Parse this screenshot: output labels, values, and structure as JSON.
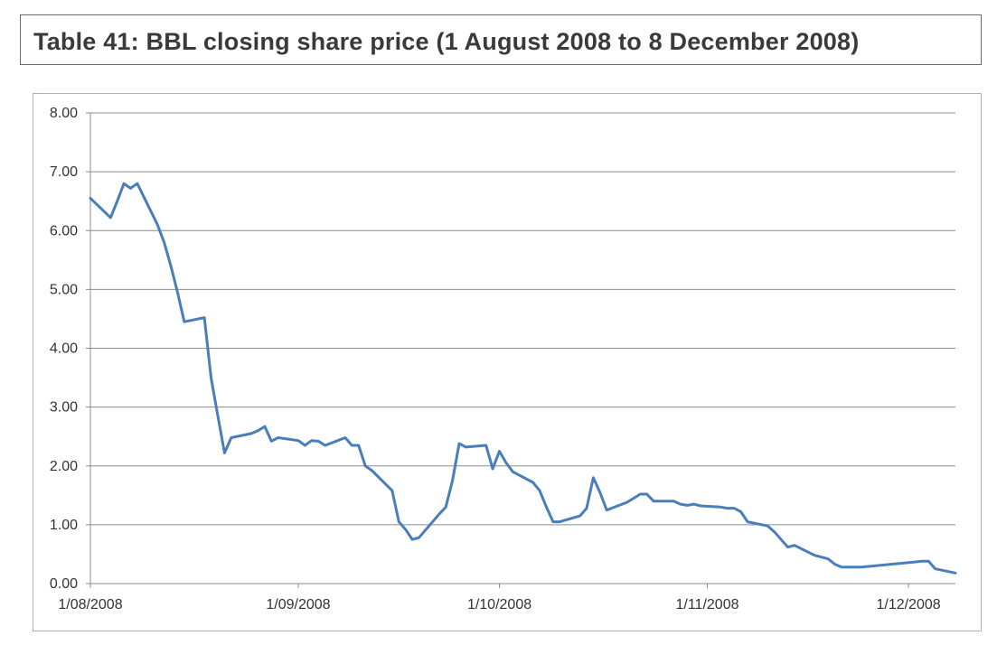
{
  "title": "Table 41: BBL closing share price (1 August 2008 to 8 December 2008)",
  "colors": {
    "line": "#4a7ebb",
    "grid": "#8c8c8c",
    "frame": "#a9b4c2",
    "title_border": "#6b6b6b",
    "title_text": "#3a3a3a"
  },
  "chart_data": {
    "type": "line",
    "title": "",
    "xlabel": "",
    "ylabel": "",
    "x_axis": "date",
    "xlim": [
      "2008-08-01",
      "2008-12-08"
    ],
    "ylim": [
      0,
      8
    ],
    "grid": true,
    "legend": "none",
    "y_ticks": [
      "0.00",
      "1.00",
      "2.00",
      "3.00",
      "4.00",
      "5.00",
      "6.00",
      "7.00",
      "8.00"
    ],
    "x_ticks": [
      {
        "date": "2008-08-01",
        "label": "1/08/2008"
      },
      {
        "date": "2008-09-01",
        "label": "1/09/2008"
      },
      {
        "date": "2008-10-01",
        "label": "1/10/2008"
      },
      {
        "date": "2008-11-01",
        "label": "1/11/2008"
      },
      {
        "date": "2008-12-01",
        "label": "1/12/2008"
      }
    ],
    "series": [
      {
        "values": [
          [
            "2008-08-01",
            6.55
          ],
          [
            "2008-08-04",
            6.22
          ],
          [
            "2008-08-05",
            6.5
          ],
          [
            "2008-08-06",
            6.8
          ],
          [
            "2008-08-07",
            6.72
          ],
          [
            "2008-08-08",
            6.8
          ],
          [
            "2008-08-11",
            6.1
          ],
          [
            "2008-08-12",
            5.8
          ],
          [
            "2008-08-13",
            5.4
          ],
          [
            "2008-08-14",
            4.95
          ],
          [
            "2008-08-15",
            4.45
          ],
          [
            "2008-08-18",
            4.52
          ],
          [
            "2008-08-19",
            3.5
          ],
          [
            "2008-08-20",
            2.85
          ],
          [
            "2008-08-21",
            2.22
          ],
          [
            "2008-08-22",
            2.48
          ],
          [
            "2008-08-25",
            2.55
          ],
          [
            "2008-08-26",
            2.6
          ],
          [
            "2008-08-27",
            2.67
          ],
          [
            "2008-08-28",
            2.42
          ],
          [
            "2008-08-29",
            2.48
          ],
          [
            "2008-09-01",
            2.43
          ],
          [
            "2008-09-02",
            2.35
          ],
          [
            "2008-09-03",
            2.43
          ],
          [
            "2008-09-04",
            2.42
          ],
          [
            "2008-09-05",
            2.35
          ],
          [
            "2008-09-08",
            2.48
          ],
          [
            "2008-09-09",
            2.35
          ],
          [
            "2008-09-10",
            2.35
          ],
          [
            "2008-09-11",
            2.0
          ],
          [
            "2008-09-12",
            1.92
          ],
          [
            "2008-09-15",
            1.58
          ],
          [
            "2008-09-16",
            1.05
          ],
          [
            "2008-09-17",
            0.92
          ],
          [
            "2008-09-18",
            0.75
          ],
          [
            "2008-09-19",
            0.78
          ],
          [
            "2008-09-22",
            1.18
          ],
          [
            "2008-09-23",
            1.3
          ],
          [
            "2008-09-24",
            1.75
          ],
          [
            "2008-09-25",
            2.38
          ],
          [
            "2008-09-26",
            2.32
          ],
          [
            "2008-09-29",
            2.35
          ],
          [
            "2008-09-30",
            1.95
          ],
          [
            "2008-10-01",
            2.25
          ],
          [
            "2008-10-02",
            2.05
          ],
          [
            "2008-10-03",
            1.9
          ],
          [
            "2008-10-06",
            1.72
          ],
          [
            "2008-10-07",
            1.58
          ],
          [
            "2008-10-08",
            1.3
          ],
          [
            "2008-10-09",
            1.05
          ],
          [
            "2008-10-10",
            1.05
          ],
          [
            "2008-10-13",
            1.15
          ],
          [
            "2008-10-14",
            1.28
          ],
          [
            "2008-10-15",
            1.8
          ],
          [
            "2008-10-16",
            1.55
          ],
          [
            "2008-10-17",
            1.25
          ],
          [
            "2008-10-20",
            1.38
          ],
          [
            "2008-10-21",
            1.45
          ],
          [
            "2008-10-22",
            1.52
          ],
          [
            "2008-10-23",
            1.52
          ],
          [
            "2008-10-24",
            1.4
          ],
          [
            "2008-10-27",
            1.4
          ],
          [
            "2008-10-28",
            1.35
          ],
          [
            "2008-10-29",
            1.33
          ],
          [
            "2008-10-30",
            1.35
          ],
          [
            "2008-10-31",
            1.32
          ],
          [
            "2008-11-03",
            1.3
          ],
          [
            "2008-11-04",
            1.28
          ],
          [
            "2008-11-05",
            1.28
          ],
          [
            "2008-11-06",
            1.22
          ],
          [
            "2008-11-07",
            1.05
          ],
          [
            "2008-11-10",
            0.98
          ],
          [
            "2008-11-11",
            0.88
          ],
          [
            "2008-11-12",
            0.75
          ],
          [
            "2008-11-13",
            0.62
          ],
          [
            "2008-11-14",
            0.65
          ],
          [
            "2008-11-17",
            0.48
          ],
          [
            "2008-11-18",
            0.45
          ],
          [
            "2008-11-19",
            0.42
          ],
          [
            "2008-11-20",
            0.33
          ],
          [
            "2008-11-21",
            0.28
          ],
          [
            "2008-11-24",
            0.28
          ],
          [
            "2008-12-03",
            0.38
          ],
          [
            "2008-12-04",
            0.38
          ],
          [
            "2008-12-05",
            0.25
          ],
          [
            "2008-12-08",
            0.18
          ]
        ]
      }
    ]
  }
}
